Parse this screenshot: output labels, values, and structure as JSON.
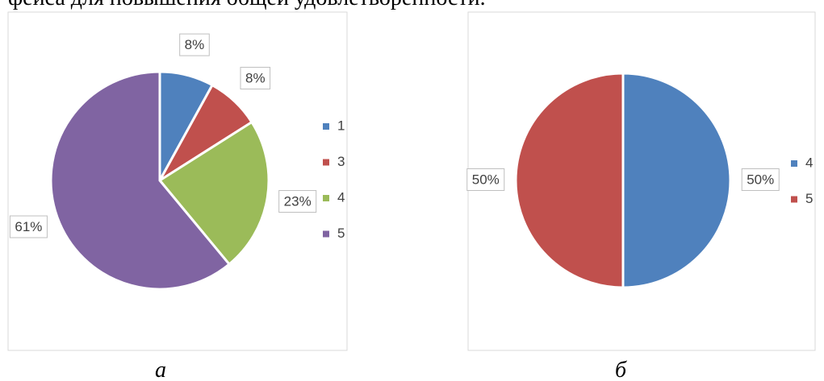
{
  "header_text": "фейса для повышения общей удовлетворенности.",
  "chart_data": [
    {
      "type": "pie",
      "categories": [
        "1",
        "3",
        "4",
        "5"
      ],
      "values": [
        8,
        8,
        23,
        61
      ],
      "value_labels": [
        "8%",
        "8%",
        "23%",
        "61%"
      ],
      "colors": [
        "#4f81bd",
        "#c0504d",
        "#9bbb59",
        "#8064a2"
      ],
      "legend": "right",
      "caption": "а"
    },
    {
      "type": "pie",
      "categories": [
        "4",
        "5"
      ],
      "values": [
        50,
        50
      ],
      "value_labels": [
        "50%",
        "50%"
      ],
      "colors": [
        "#4f81bd",
        "#c0504d"
      ],
      "legend": "right",
      "caption": "б"
    }
  ]
}
